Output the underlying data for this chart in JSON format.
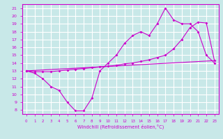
{
  "xlabel": "Windchill (Refroidissement éolien,°C)",
  "bg_color": "#c8e8e8",
  "grid_color": "#ffffff",
  "line_color": "#cc00cc",
  "xlim": [
    -0.5,
    23.5
  ],
  "ylim": [
    7.5,
    21.5
  ],
  "xticks": [
    0,
    1,
    2,
    3,
    4,
    5,
    6,
    7,
    8,
    9,
    10,
    11,
    12,
    13,
    14,
    15,
    16,
    17,
    18,
    19,
    20,
    21,
    22,
    23
  ],
  "yticks": [
    8,
    9,
    10,
    11,
    12,
    13,
    14,
    15,
    16,
    17,
    18,
    19,
    20,
    21
  ],
  "line1_x": [
    0,
    1,
    2,
    3,
    4,
    5,
    6,
    7,
    8,
    9,
    10,
    11,
    12,
    13,
    14,
    15,
    16,
    17,
    18,
    19,
    20,
    21,
    22,
    23
  ],
  "line1_y": [
    13.0,
    12.7,
    12.0,
    11.0,
    10.5,
    9.0,
    7.9,
    7.9,
    9.5,
    13.0,
    14.0,
    15.0,
    16.5,
    17.5,
    18.0,
    17.5,
    19.0,
    21.0,
    19.5,
    19.0,
    19.0,
    18.0,
    15.0,
    14.0
  ],
  "line2_x": [
    0,
    23
  ],
  "line2_y": [
    13.0,
    14.3
  ],
  "line3_x": [
    0,
    1,
    2,
    3,
    4,
    5,
    6,
    7,
    8,
    9,
    10,
    11,
    12,
    13,
    14,
    15,
    16,
    17,
    18,
    19,
    20,
    21,
    22,
    23
  ],
  "line3_y": [
    13.0,
    12.9,
    12.9,
    12.9,
    13.0,
    13.1,
    13.2,
    13.3,
    13.4,
    13.5,
    13.6,
    13.7,
    13.9,
    14.0,
    14.2,
    14.4,
    14.7,
    15.0,
    15.8,
    17.0,
    18.5,
    19.2,
    19.1,
    14.3
  ]
}
